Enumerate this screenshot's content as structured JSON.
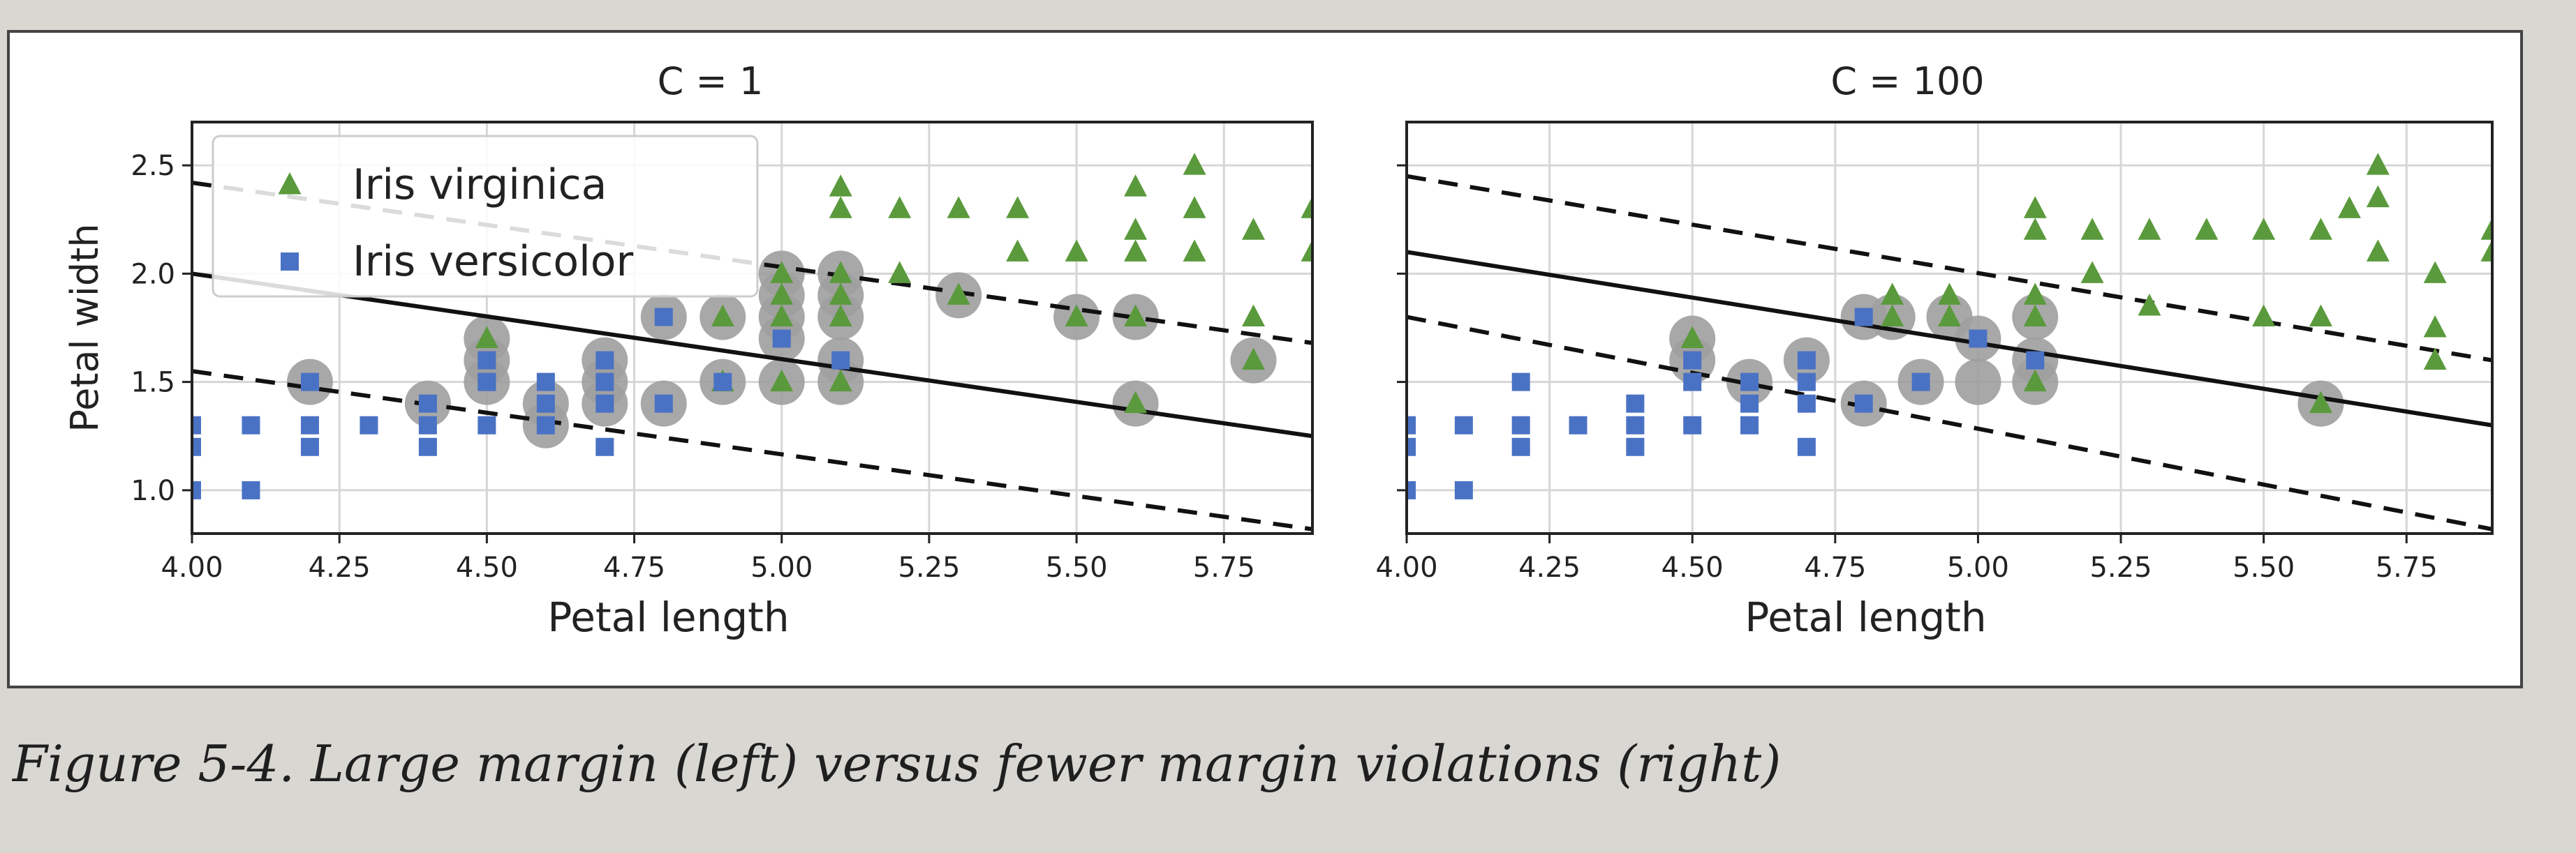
{
  "figure": {
    "caption": "Figure 5-4. Large margin (left) versus fewer margin violations (right)"
  },
  "colors": {
    "virginica": "#5a9a3c",
    "versicolor": "#4a72c4",
    "support_halo": "#9e9e9e",
    "grid": "#d6d6d6",
    "axis": "#222222",
    "panel_bg": "#ffffff",
    "page_bg": "#d9d7d2"
  },
  "chart_data": [
    {
      "type": "scatter",
      "title": "C = 1",
      "xlabel": "Petal length",
      "ylabel": "Petal width",
      "xlim": [
        4.0,
        5.9
      ],
      "ylim": [
        0.8,
        2.7
      ],
      "xticks": [
        "4.00",
        "4.25",
        "4.50",
        "4.75",
        "5.00",
        "5.25",
        "5.50",
        "5.75"
      ],
      "yticks": [
        "1.0",
        "1.5",
        "2.0",
        "2.5"
      ],
      "grid": true,
      "legend": {
        "placement": "top-left",
        "entries": [
          "Iris virginica",
          "Iris versicolor"
        ]
      },
      "decision_boundary": {
        "x": [
          4.0,
          5.9
        ],
        "y": [
          2.0,
          1.25
        ]
      },
      "margin_upper": {
        "x": [
          4.0,
          5.9
        ],
        "y": [
          2.42,
          1.68
        ]
      },
      "margin_lower": {
        "x": [
          4.0,
          5.9
        ],
        "y": [
          1.55,
          0.82
        ]
      },
      "series": [
        {
          "name": "Iris virginica",
          "points": [
            [
              4.5,
              1.7
            ],
            [
              4.9,
              1.8
            ],
            [
              4.9,
              1.5
            ],
            [
              5.0,
              1.5
            ],
            [
              5.0,
              2.0
            ],
            [
              5.0,
              1.9
            ],
            [
              5.0,
              1.8
            ],
            [
              5.1,
              2.4
            ],
            [
              5.1,
              2.3
            ],
            [
              5.1,
              2.0
            ],
            [
              5.1,
              1.9
            ],
            [
              5.1,
              1.8
            ],
            [
              5.1,
              1.5
            ],
            [
              5.2,
              2.3
            ],
            [
              5.2,
              2.0
            ],
            [
              5.3,
              2.3
            ],
            [
              5.3,
              1.9
            ],
            [
              5.4,
              2.3
            ],
            [
              5.4,
              2.1
            ],
            [
              5.5,
              2.1
            ],
            [
              5.5,
              1.8
            ],
            [
              5.6,
              2.4
            ],
            [
              5.6,
              2.2
            ],
            [
              5.6,
              2.1
            ],
            [
              5.6,
              1.8
            ],
            [
              5.6,
              1.4
            ],
            [
              5.7,
              2.5
            ],
            [
              5.7,
              2.3
            ],
            [
              5.7,
              2.1
            ],
            [
              5.8,
              2.2
            ],
            [
              5.8,
              1.8
            ],
            [
              5.8,
              1.6
            ],
            [
              5.9,
              2.3
            ],
            [
              5.9,
              2.1
            ]
          ]
        },
        {
          "name": "Iris versicolor",
          "points": [
            [
              4.0,
              1.0
            ],
            [
              4.0,
              1.2
            ],
            [
              4.0,
              1.3
            ],
            [
              4.1,
              1.0
            ],
            [
              4.1,
              1.3
            ],
            [
              4.2,
              1.2
            ],
            [
              4.2,
              1.3
            ],
            [
              4.2,
              1.5
            ],
            [
              4.3,
              1.3
            ],
            [
              4.4,
              1.2
            ],
            [
              4.4,
              1.3
            ],
            [
              4.4,
              1.4
            ],
            [
              4.5,
              1.3
            ],
            [
              4.5,
              1.5
            ],
            [
              4.5,
              1.5
            ],
            [
              4.5,
              1.6
            ],
            [
              4.6,
              1.3
            ],
            [
              4.6,
              1.4
            ],
            [
              4.6,
              1.5
            ],
            [
              4.7,
              1.2
            ],
            [
              4.7,
              1.4
            ],
            [
              4.7,
              1.5
            ],
            [
              4.7,
              1.6
            ],
            [
              4.8,
              1.4
            ],
            [
              4.8,
              1.8
            ],
            [
              4.9,
              1.5
            ],
            [
              5.0,
              1.7
            ],
            [
              5.1,
              1.6
            ]
          ]
        }
      ],
      "support_vectors": [
        [
          4.2,
          1.5
        ],
        [
          4.4,
          1.4
        ],
        [
          4.5,
          1.5
        ],
        [
          4.5,
          1.6
        ],
        [
          4.5,
          1.7
        ],
        [
          4.6,
          1.3
        ],
        [
          4.6,
          1.4
        ],
        [
          4.7,
          1.4
        ],
        [
          4.7,
          1.5
        ],
        [
          4.7,
          1.6
        ],
        [
          4.8,
          1.4
        ],
        [
          4.8,
          1.8
        ],
        [
          4.9,
          1.5
        ],
        [
          4.9,
          1.8
        ],
        [
          5.0,
          1.5
        ],
        [
          5.0,
          1.7
        ],
        [
          5.0,
          1.8
        ],
        [
          5.0,
          1.9
        ],
        [
          5.0,
          2.0
        ],
        [
          5.1,
          1.5
        ],
        [
          5.1,
          1.6
        ],
        [
          5.1,
          1.8
        ],
        [
          5.1,
          1.9
        ],
        [
          5.1,
          2.0
        ],
        [
          5.3,
          1.9
        ],
        [
          5.5,
          1.8
        ],
        [
          5.6,
          1.8
        ],
        [
          5.6,
          1.4
        ],
        [
          5.8,
          1.6
        ]
      ]
    },
    {
      "type": "scatter",
      "title": "C = 100",
      "xlabel": "Petal length",
      "ylabel": "",
      "xlim": [
        4.0,
        5.9
      ],
      "ylim": [
        0.8,
        2.7
      ],
      "xticks": [
        "4.00",
        "4.25",
        "4.50",
        "4.75",
        "5.00",
        "5.25",
        "5.50",
        "5.75"
      ],
      "yticks": [],
      "grid": true,
      "decision_boundary": {
        "x": [
          4.0,
          5.9
        ],
        "y": [
          2.1,
          1.3
        ]
      },
      "margin_upper": {
        "x": [
          4.0,
          5.9
        ],
        "y": [
          2.45,
          1.6
        ]
      },
      "margin_lower": {
        "x": [
          4.0,
          5.9
        ],
        "y": [
          1.8,
          0.82
        ]
      },
      "series": [
        {
          "name": "Iris virginica",
          "points": [
            [
              4.5,
              1.7
            ],
            [
              4.85,
              1.9
            ],
            [
              4.85,
              1.8
            ],
            [
              4.95,
              1.9
            ],
            [
              4.95,
              1.8
            ],
            [
              5.1,
              2.3
            ],
            [
              5.1,
              2.2
            ],
            [
              5.1,
              1.9
            ],
            [
              5.1,
              1.8
            ],
            [
              5.1,
              1.5
            ],
            [
              5.2,
              2.2
            ],
            [
              5.2,
              2.0
            ],
            [
              5.3,
              2.2
            ],
            [
              5.3,
              1.85
            ],
            [
              5.4,
              2.2
            ],
            [
              5.5,
              2.2
            ],
            [
              5.5,
              1.8
            ],
            [
              5.6,
              2.2
            ],
            [
              5.6,
              1.8
            ],
            [
              5.6,
              1.4
            ],
            [
              5.65,
              2.3
            ],
            [
              5.7,
              2.5
            ],
            [
              5.7,
              2.35
            ],
            [
              5.7,
              2.1
            ],
            [
              5.8,
              2.0
            ],
            [
              5.8,
              1.75
            ],
            [
              5.8,
              1.6
            ],
            [
              5.9,
              2.2
            ],
            [
              5.9,
              2.1
            ]
          ]
        },
        {
          "name": "Iris versicolor",
          "points": [
            [
              4.0,
              1.0
            ],
            [
              4.0,
              1.2
            ],
            [
              4.0,
              1.3
            ],
            [
              4.1,
              1.0
            ],
            [
              4.1,
              1.3
            ],
            [
              4.2,
              1.2
            ],
            [
              4.2,
              1.3
            ],
            [
              4.2,
              1.5
            ],
            [
              4.3,
              1.3
            ],
            [
              4.4,
              1.2
            ],
            [
              4.4,
              1.3
            ],
            [
              4.4,
              1.4
            ],
            [
              4.5,
              1.3
            ],
            [
              4.5,
              1.5
            ],
            [
              4.5,
              1.6
            ],
            [
              4.6,
              1.3
            ],
            [
              4.6,
              1.4
            ],
            [
              4.6,
              1.5
            ],
            [
              4.7,
              1.2
            ],
            [
              4.7,
              1.4
            ],
            [
              4.7,
              1.5
            ],
            [
              4.7,
              1.6
            ],
            [
              4.8,
              1.4
            ],
            [
              4.8,
              1.8
            ],
            [
              4.9,
              1.5
            ],
            [
              5.0,
              1.7
            ],
            [
              5.1,
              1.6
            ]
          ]
        }
      ],
      "support_vectors": [
        [
          4.5,
          1.6
        ],
        [
          4.5,
          1.7
        ],
        [
          4.6,
          1.5
        ],
        [
          4.7,
          1.6
        ],
        [
          4.8,
          1.4
        ],
        [
          4.8,
          1.8
        ],
        [
          4.85,
          1.8
        ],
        [
          4.9,
          1.5
        ],
        [
          4.95,
          1.8
        ],
        [
          5.0,
          1.5
        ],
        [
          5.0,
          1.7
        ],
        [
          5.1,
          1.5
        ],
        [
          5.1,
          1.6
        ],
        [
          5.1,
          1.8
        ],
        [
          5.6,
          1.4
        ]
      ]
    }
  ]
}
